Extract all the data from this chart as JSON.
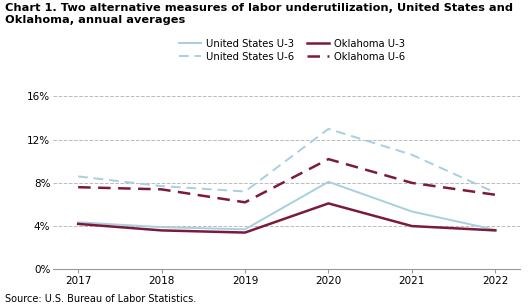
{
  "years": [
    2017,
    2018,
    2019,
    2020,
    2021,
    2022
  ],
  "us_u3": [
    4.35,
    3.9,
    3.7,
    8.1,
    5.35,
    3.65
  ],
  "us_u6": [
    8.6,
    7.7,
    7.2,
    13.0,
    10.6,
    7.1
  ],
  "ok_u3": [
    4.2,
    3.6,
    3.4,
    6.1,
    4.0,
    3.6
  ],
  "ok_u6": [
    7.6,
    7.4,
    6.2,
    10.2,
    8.0,
    6.9
  ],
  "color_us": "#a8cfe0",
  "color_ok": "#7b1a3a",
  "title": "Chart 1. Two alternative measures of labor underutilization, United States and\nOklahoma, annual averages",
  "source": "Source: U.S. Bureau of Labor Statistics.",
  "ylim": [
    0,
    0.17
  ],
  "yticks": [
    0.0,
    0.04,
    0.08,
    0.12,
    0.16
  ],
  "ytick_labels": [
    "0%",
    "4%",
    "8%",
    "12%",
    "16%"
  ],
  "legend_us3": "United States U-3",
  "legend_us6": "United States U-6",
  "legend_ok3": "Oklahoma U-3",
  "legend_ok6": "Oklahoma U-6"
}
